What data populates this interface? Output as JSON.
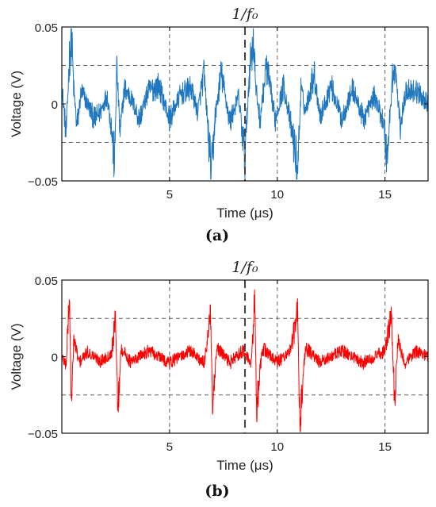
{
  "chart_data": [
    {
      "type": "line",
      "panel_label": "(a)",
      "title_marker": "1/f₀",
      "xlabel": "Time (μs)",
      "ylabel": "Voltage (V)",
      "xlim": [
        0,
        17
      ],
      "ylim": [
        -0.05,
        0.05
      ],
      "xticks": [
        5,
        10,
        15
      ],
      "xtick_labels": [
        "5",
        "10",
        "15"
      ],
      "yticks": [
        -0.05,
        0,
        0.05
      ],
      "ytick_labels": [
        "−0.05",
        "0",
        "0.05"
      ],
      "grid": true,
      "reference_lines_y": [
        -0.025,
        0.025
      ],
      "marker_x": 8.5,
      "series": [
        {
          "color": "#1f77bf",
          "x": [
            0,
            0.2,
            0.35,
            0.45,
            0.55,
            0.7,
            0.9,
            1.2,
            1.5,
            1.8,
            2.1,
            2.3,
            2.45,
            2.55,
            2.7,
            2.9,
            3.2,
            3.6,
            4.0,
            4.5,
            5.0,
            5.5,
            6.0,
            6.3,
            6.6,
            6.85,
            6.95,
            7.1,
            7.4,
            7.8,
            8.2,
            8.5,
            8.7,
            8.9,
            9.0,
            9.2,
            9.5,
            9.9,
            10.3,
            10.7,
            10.95,
            11.1,
            11.3,
            11.7,
            12.0,
            12.5,
            13.0,
            13.5,
            14.0,
            14.5,
            14.9,
            15.1,
            15.35,
            15.5,
            15.7,
            16.0,
            16.5,
            17.0
          ],
          "y": [
            0.012,
            -0.02,
            0.03,
            0.045,
            0.01,
            -0.015,
            0.008,
            0.0,
            -0.01,
            -0.005,
            0.006,
            -0.015,
            -0.04,
            0.025,
            -0.02,
            0.01,
            0.004,
            -0.01,
            0.008,
            0.012,
            -0.01,
            0.006,
            0.01,
            -0.005,
            0.02,
            -0.03,
            -0.048,
            -0.01,
            0.02,
            -0.012,
            0.005,
            -0.035,
            0.02,
            0.045,
            0.01,
            -0.01,
            0.025,
            -0.01,
            0.012,
            -0.02,
            -0.042,
            0.01,
            -0.005,
            0.02,
            -0.008,
            0.012,
            -0.01,
            0.01,
            -0.01,
            0.005,
            -0.01,
            -0.035,
            0.018,
            0.02,
            -0.015,
            0.01,
            0.008,
            0.0
          ]
        }
      ]
    },
    {
      "type": "line",
      "panel_label": "(b)",
      "title_marker": "1/f₀",
      "xlabel": "Time (μs)",
      "ylabel": "Voltage (V)",
      "xlim": [
        0,
        17
      ],
      "ylim": [
        -0.05,
        0.05
      ],
      "xticks": [
        5,
        10,
        15
      ],
      "xtick_labels": [
        "5",
        "10",
        "15"
      ],
      "yticks": [
        -0.05,
        0,
        0.05
      ],
      "ytick_labels": [
        "−0.05",
        "0",
        "0.05"
      ],
      "grid": true,
      "reference_lines_y": [
        -0.025,
        0.025
      ],
      "marker_x": 8.5,
      "series": [
        {
          "color": "#ff0000",
          "x": [
            0,
            0.2,
            0.35,
            0.45,
            0.55,
            0.8,
            1.2,
            1.8,
            2.3,
            2.5,
            2.6,
            2.75,
            3.2,
            4.0,
            5.0,
            6.0,
            6.6,
            6.9,
            7.0,
            7.2,
            7.8,
            8.4,
            8.8,
            8.95,
            9.05,
            9.3,
            10.0,
            10.6,
            10.95,
            11.05,
            11.3,
            12.0,
            13.0,
            14.0,
            15.0,
            15.3,
            15.45,
            15.6,
            15.9,
            16.5,
            17.0
          ],
          "y": [
            0.0,
            -0.005,
            0.04,
            -0.035,
            0.012,
            -0.004,
            0.003,
            -0.003,
            0.002,
            0.025,
            -0.037,
            0.006,
            -0.004,
            0.004,
            -0.004,
            0.004,
            -0.005,
            0.027,
            -0.035,
            0.006,
            -0.004,
            0.004,
            -0.005,
            0.038,
            -0.036,
            0.006,
            -0.004,
            0.004,
            0.028,
            -0.045,
            0.006,
            -0.004,
            0.004,
            -0.004,
            0.004,
            0.026,
            -0.032,
            0.01,
            -0.004,
            0.004,
            0.0
          ]
        }
      ]
    }
  ]
}
